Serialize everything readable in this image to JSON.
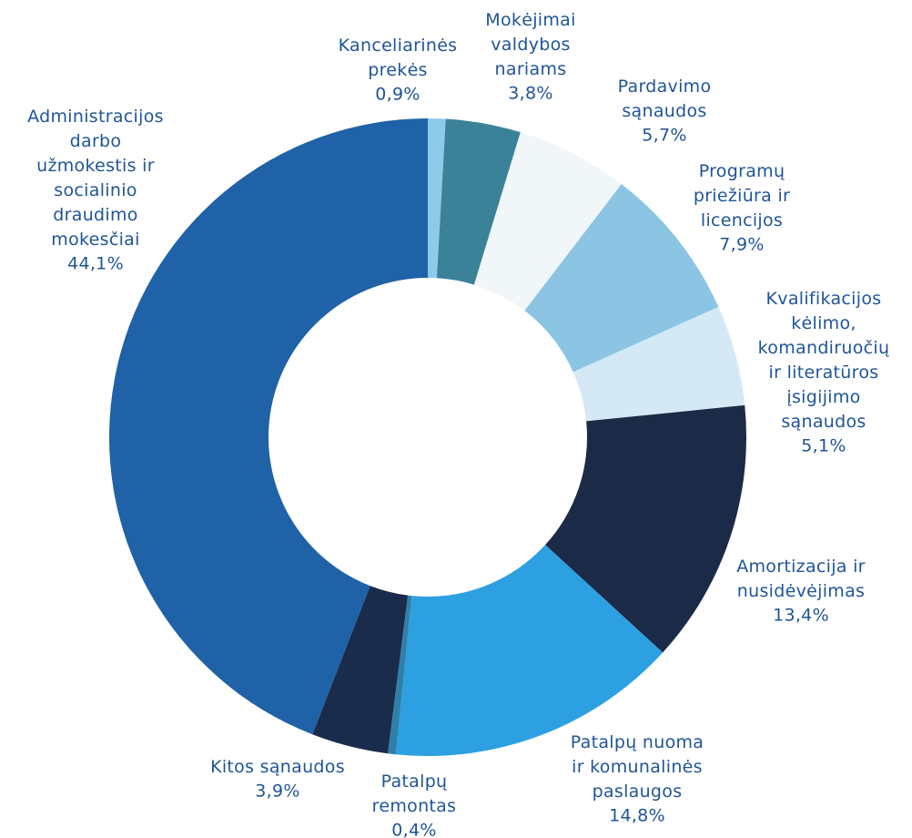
{
  "chart_data": {
    "type": "donut",
    "categories": [
      "Kanceliarinės\nprekės",
      "Mokėjimai\nvaldybos\nnariams",
      "Pardavimo\nsąnaudos",
      "Programų\npriežiūra ir\nlicencijos",
      "Kvalifikacijos\nkėlimo,\nkomandiruočių\nir literatūros\nįsigijimo\nsąnaudos",
      "Amortizacija ir\nnusidėvėjimas",
      "Patalpų nuoma\nir komunalinės\npaslaugos",
      "Patalpų\nremontas",
      "Kitos sąnaudos",
      "Administracijos\ndarbo\nužmokestis ir\nsocialinio\ndraudimo\nmokesčiai"
    ],
    "values": [
      0.9,
      3.8,
      5.7,
      7.9,
      5.1,
      13.4,
      14.8,
      0.4,
      3.9,
      44.1
    ],
    "value_labels": [
      "0,9%",
      "3,8%",
      "5,7%",
      "7,9%",
      "5,1%",
      "13,4%",
      "14,8%",
      "0,4%",
      "3,9%",
      "44,1%"
    ],
    "colors": [
      "#8ecae9",
      "#3b8299",
      "#f1f6f9",
      "#8cc5e3",
      "#d4e9f5",
      "#1b2a47",
      "#2ca0e0",
      "#2f80a8",
      "#1a2c4c",
      "#1f62a7"
    ]
  }
}
